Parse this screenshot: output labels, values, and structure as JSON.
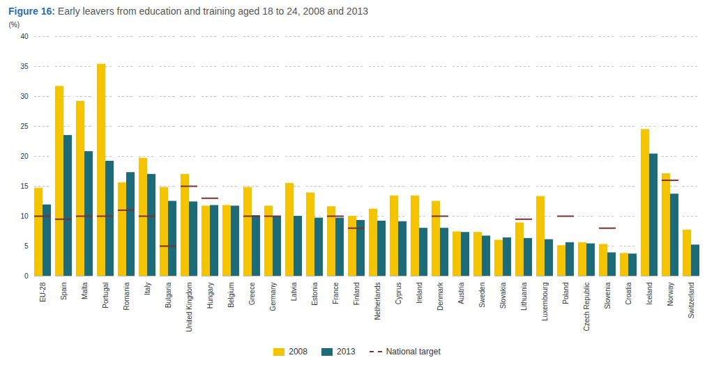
{
  "chart_data": {
    "type": "bar",
    "title": "Figure 16: Early leavers from education and training aged 18 to 24, 2008 and 2013",
    "y_label": "(%)",
    "categories": [
      "EU-28",
      "Spain",
      "Malta",
      "Portugal",
      "Romania",
      "Italy",
      "Bulgaria",
      "United Kingdom",
      "Hungary",
      "Belgium",
      "Greece",
      "Germany",
      "Latvia",
      "Estonia",
      "France",
      "Finland",
      "Netherlands",
      "Cyprus",
      "Ireland",
      "Denmark",
      "Austria",
      "Sweden",
      "Slovakia",
      "Lithuania",
      "Luxembourg",
      "Poland",
      "Czech Republic",
      "Slovenia",
      "Croatia",
      "Iceland",
      "Norway",
      "Switzerland"
    ],
    "series": [
      {
        "name": "2008",
        "color": "#F5C400",
        "values": [
          14.7,
          31.7,
          29.2,
          35.4,
          15.6,
          19.7,
          14.8,
          17.0,
          11.7,
          11.8,
          14.8,
          11.7,
          15.5,
          13.9,
          11.6,
          10.0,
          11.2,
          13.4,
          13.4,
          12.5,
          7.4,
          7.3,
          6.0,
          8.9,
          13.3,
          5.1,
          5.6,
          5.3,
          3.8,
          24.5,
          17.1,
          7.7
        ]
      },
      {
        "name": "2013",
        "color": "#1D6B78",
        "values": [
          11.9,
          23.5,
          20.8,
          19.2,
          17.3,
          17.0,
          12.5,
          12.4,
          11.8,
          11.7,
          10.1,
          9.9,
          10.0,
          9.7,
          9.7,
          9.3,
          9.2,
          9.1,
          8.0,
          8.0,
          7.3,
          6.7,
          6.4,
          6.3,
          6.1,
          5.6,
          5.4,
          3.9,
          3.7,
          20.4,
          13.7,
          5.2
        ]
      },
      {
        "name": "National target",
        "type": "tick",
        "color": "#7B3030",
        "values": [
          10.0,
          9.5,
          10.0,
          10.0,
          11.0,
          10.0,
          5.0,
          15.0,
          13.0,
          null,
          10.0,
          10.0,
          null,
          null,
          10.0,
          8.0,
          null,
          null,
          null,
          10.0,
          null,
          null,
          null,
          9.5,
          null,
          10.0,
          null,
          8.0,
          null,
          null,
          16.0,
          null
        ]
      }
    ],
    "ylim": [
      0,
      40
    ],
    "yticks": [
      0,
      5,
      10,
      15,
      20,
      25,
      30,
      35,
      40
    ],
    "grid": true,
    "legend": "bottom"
  }
}
